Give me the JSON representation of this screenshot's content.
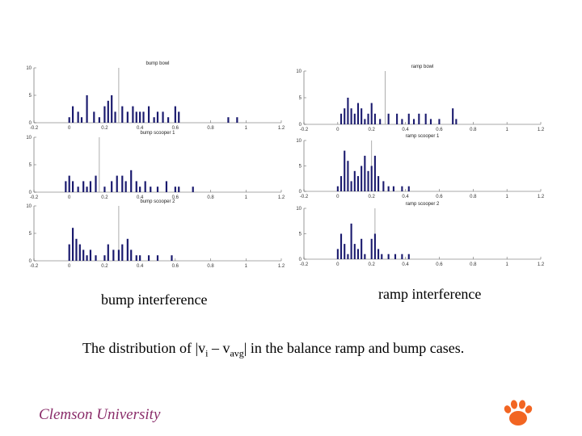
{
  "colors": {
    "bar": "#1a1a6e",
    "axis": "#555555",
    "marker": "#999999",
    "paw": "#f26522",
    "footer": "#8a2d6a"
  },
  "captions": {
    "bump": "bump interference",
    "ramp": "ramp interference",
    "sentence_prefix": "The distribution of |v",
    "sentence_sub_i": "i",
    "sentence_mid": " – v",
    "sentence_sub_avg": "avg",
    "sentence_suffix": "| in the balance ramp and bump cases."
  },
  "footer": {
    "text": "Clemson University"
  },
  "logo": {
    "icon": "tiger-paw-icon"
  },
  "chart_data": [
    {
      "type": "bar",
      "title": "bump bowl",
      "xlim": [
        -0.2,
        1.2
      ],
      "ylim": [
        0,
        10
      ],
      "xticks": [
        "-0.2",
        "0",
        "0.2",
        "0.4",
        "0.6",
        "0.8",
        "1",
        "1.2"
      ],
      "yticks": [
        "0",
        "5",
        "10"
      ],
      "marker_x": 0.28,
      "bar_width": 0.01,
      "x": [
        0.0,
        0.02,
        0.05,
        0.07,
        0.1,
        0.14,
        0.17,
        0.2,
        0.22,
        0.24,
        0.26,
        0.3,
        0.33,
        0.36,
        0.38,
        0.4,
        0.42,
        0.45,
        0.48,
        0.5,
        0.53,
        0.56,
        0.6,
        0.62,
        0.9,
        0.95
      ],
      "values": [
        1,
        3,
        2,
        1,
        5,
        2,
        1,
        3,
        4,
        5,
        2,
        3,
        2,
        3,
        2,
        2,
        2,
        3,
        1,
        2,
        2,
        1,
        3,
        2,
        1,
        1
      ]
    },
    {
      "type": "bar",
      "title": "ramp bowl",
      "xlim": [
        -0.2,
        1.2
      ],
      "ylim": [
        0,
        10
      ],
      "xticks": [
        "-0.2",
        "0",
        "0.2",
        "0.4",
        "0.6",
        "0.8",
        "1",
        "1.2"
      ],
      "yticks": [
        "0",
        "5",
        "10"
      ],
      "marker_x": 0.28,
      "bar_width": 0.01,
      "x": [
        0.02,
        0.04,
        0.06,
        0.08,
        0.1,
        0.12,
        0.14,
        0.16,
        0.18,
        0.2,
        0.22,
        0.25,
        0.3,
        0.35,
        0.38,
        0.42,
        0.45,
        0.48,
        0.52,
        0.55,
        0.6,
        0.68,
        0.7
      ],
      "values": [
        2,
        3,
        5,
        3,
        2,
        4,
        3,
        1,
        2,
        4,
        2,
        1,
        2,
        2,
        1,
        2,
        1,
        2,
        2,
        1,
        1,
        3,
        1
      ]
    },
    {
      "type": "bar",
      "title": "bump scooper 1",
      "xlim": [
        -0.2,
        1.2
      ],
      "ylim": [
        0,
        10
      ],
      "xticks": [
        "-0.2",
        "0",
        "0.2",
        "0.4",
        "0.6",
        "0.8",
        "1",
        "1.2"
      ],
      "yticks": [
        "0",
        "5",
        "10"
      ],
      "marker_x": 0.17,
      "bar_width": 0.01,
      "x": [
        -0.02,
        0.0,
        0.02,
        0.05,
        0.08,
        0.1,
        0.12,
        0.15,
        0.2,
        0.24,
        0.27,
        0.3,
        0.32,
        0.35,
        0.38,
        0.4,
        0.43,
        0.46,
        0.5,
        0.55,
        0.6,
        0.62,
        0.7
      ],
      "values": [
        2,
        3,
        2,
        1,
        2,
        1,
        2,
        3,
        1,
        2,
        3,
        3,
        2,
        4,
        2,
        1,
        2,
        1,
        1,
        2,
        1,
        1,
        1
      ]
    },
    {
      "type": "bar",
      "title": "ramp scooper 1",
      "xlim": [
        -0.2,
        1.2
      ],
      "ylim": [
        0,
        10
      ],
      "xticks": [
        "-0.2",
        "0",
        "0.2",
        "0.4",
        "0.6",
        "0.8",
        "1",
        "1.2"
      ],
      "yticks": [
        "0",
        "5",
        "10"
      ],
      "marker_x": 0.2,
      "bar_width": 0.01,
      "x": [
        0.0,
        0.02,
        0.04,
        0.06,
        0.08,
        0.1,
        0.12,
        0.14,
        0.16,
        0.18,
        0.2,
        0.22,
        0.24,
        0.27,
        0.3,
        0.33,
        0.38,
        0.42
      ],
      "values": [
        1,
        3,
        8,
        6,
        2,
        4,
        3,
        5,
        7,
        4,
        5,
        7,
        3,
        2,
        1,
        1,
        1,
        1
      ]
    },
    {
      "type": "bar",
      "title": "bump scooper 2",
      "xlim": [
        -0.2,
        1.2
      ],
      "ylim": [
        0,
        10
      ],
      "xticks": [
        "-0.2",
        "0",
        "0.2",
        "0.4",
        "0.6",
        "0.8",
        "1",
        "1.2"
      ],
      "yticks": [
        "0",
        "5",
        "10"
      ],
      "marker_x": 0.28,
      "bar_width": 0.01,
      "x": [
        0.0,
        0.02,
        0.04,
        0.06,
        0.08,
        0.1,
        0.12,
        0.15,
        0.2,
        0.22,
        0.25,
        0.28,
        0.3,
        0.33,
        0.35,
        0.38,
        0.4,
        0.45,
        0.5,
        0.58
      ],
      "values": [
        3,
        6,
        4,
        3,
        2,
        1,
        2,
        1,
        1,
        3,
        2,
        2,
        3,
        4,
        2,
        1,
        1,
        1,
        1,
        1
      ]
    },
    {
      "type": "bar",
      "title": "ramp scooper 2",
      "xlim": [
        -0.2,
        1.2
      ],
      "ylim": [
        0,
        10
      ],
      "xticks": [
        "-0.2",
        "0",
        "0.2",
        "0.4",
        "0.6",
        "0.8",
        "1",
        "1.2"
      ],
      "yticks": [
        "0",
        "5",
        "10"
      ],
      "marker_x": 0.22,
      "bar_width": 0.01,
      "x": [
        0.0,
        0.02,
        0.04,
        0.06,
        0.08,
        0.1,
        0.12,
        0.14,
        0.16,
        0.2,
        0.22,
        0.24,
        0.26,
        0.3,
        0.34,
        0.38,
        0.42
      ],
      "values": [
        2,
        5,
        3,
        1,
        7,
        3,
        2,
        4,
        1,
        4,
        5,
        2,
        1,
        1,
        1,
        1,
        1
      ]
    }
  ]
}
